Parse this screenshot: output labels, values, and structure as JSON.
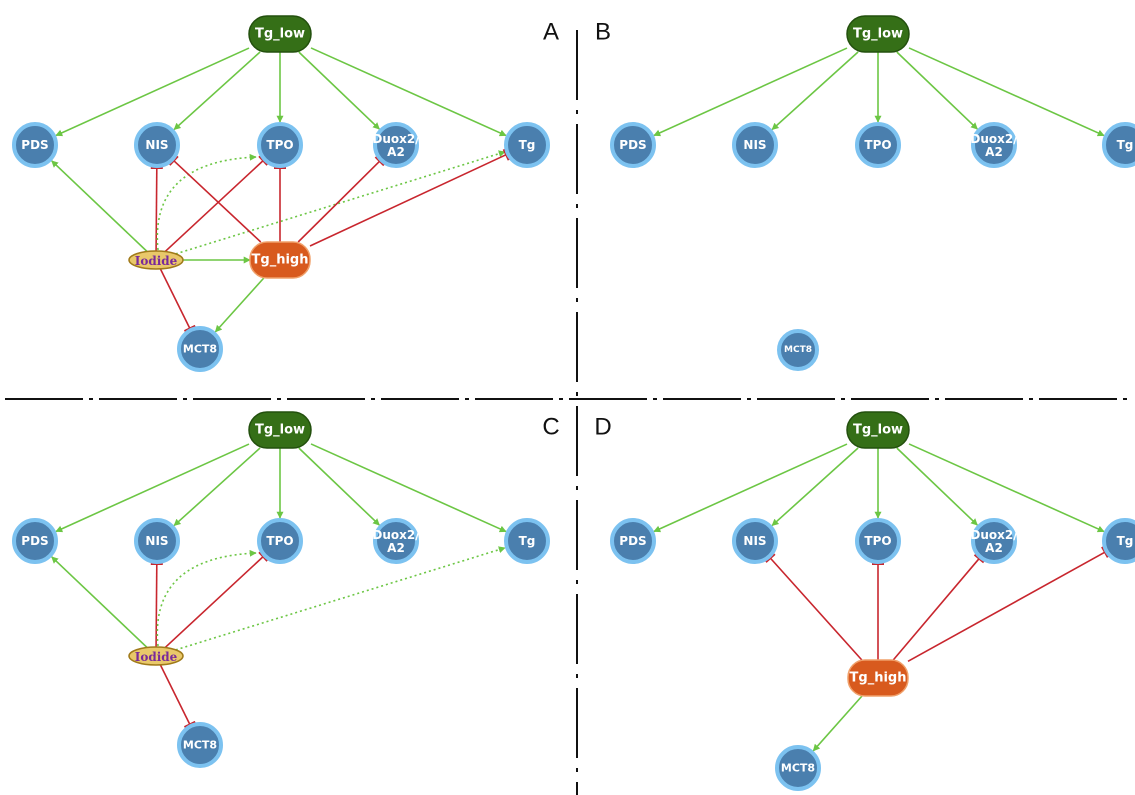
{
  "colors": {
    "activation": "#6cc644",
    "inhibition": "#c8262e",
    "gene_fill": "#4a7fae",
    "gene_ring": "#7cc2f0",
    "tg_low_fill": "#356f17",
    "tg_high_fill": "#d85a1e",
    "iodide_fill": "#e9c86a",
    "iodide_text": "#7a2a9a",
    "divider": "#111111"
  },
  "labels": {
    "tg_low": "Tg_low",
    "tg_high": "Tg_high",
    "iodide": "Iodide",
    "pds": "PDS",
    "nis": "NIS",
    "tpo": "TPO",
    "duox_line1": "Duox2/",
    "duox_line2": "A2",
    "tg": "Tg",
    "mct8": "MCT8"
  },
  "panels": [
    {
      "id": "A",
      "letter": "A",
      "nodes": [
        "tg_low",
        "pds",
        "nis",
        "tpo",
        "duox",
        "tg",
        "iodide",
        "tg_high",
        "mct8"
      ],
      "edges": [
        {
          "from": "tg_low",
          "to": "pds",
          "type": "activation"
        },
        {
          "from": "tg_low",
          "to": "nis",
          "type": "activation"
        },
        {
          "from": "tg_low",
          "to": "tpo",
          "type": "activation"
        },
        {
          "from": "tg_low",
          "to": "duox",
          "type": "activation"
        },
        {
          "from": "tg_low",
          "to": "tg",
          "type": "activation"
        },
        {
          "from": "iodide",
          "to": "pds",
          "type": "activation"
        },
        {
          "from": "iodide",
          "to": "nis",
          "type": "inhibition"
        },
        {
          "from": "iodide",
          "to": "tpo",
          "type": "inhibition"
        },
        {
          "from": "iodide",
          "to": "tpo",
          "type": "activation-dotted-curve"
        },
        {
          "from": "iodide",
          "to": "tg",
          "type": "activation-dotted"
        },
        {
          "from": "iodide",
          "to": "tg_high",
          "type": "activation"
        },
        {
          "from": "iodide",
          "to": "mct8",
          "type": "inhibition"
        },
        {
          "from": "tg_high",
          "to": "nis",
          "type": "inhibition"
        },
        {
          "from": "tg_high",
          "to": "tpo",
          "type": "inhibition"
        },
        {
          "from": "tg_high",
          "to": "duox",
          "type": "inhibition"
        },
        {
          "from": "tg_high",
          "to": "tg",
          "type": "inhibition"
        },
        {
          "from": "tg_high",
          "to": "mct8",
          "type": "activation"
        }
      ]
    },
    {
      "id": "B",
      "letter": "B",
      "nodes": [
        "tg_low",
        "pds",
        "nis",
        "tpo",
        "duox",
        "tg",
        "mct8"
      ],
      "edges": [
        {
          "from": "tg_low",
          "to": "pds",
          "type": "activation"
        },
        {
          "from": "tg_low",
          "to": "nis",
          "type": "activation"
        },
        {
          "from": "tg_low",
          "to": "tpo",
          "type": "activation"
        },
        {
          "from": "tg_low",
          "to": "duox",
          "type": "activation"
        },
        {
          "from": "tg_low",
          "to": "tg",
          "type": "activation"
        }
      ]
    },
    {
      "id": "C",
      "letter": "C",
      "nodes": [
        "tg_low",
        "pds",
        "nis",
        "tpo",
        "duox",
        "tg",
        "iodide",
        "mct8"
      ],
      "edges": [
        {
          "from": "tg_low",
          "to": "pds",
          "type": "activation"
        },
        {
          "from": "tg_low",
          "to": "nis",
          "type": "activation"
        },
        {
          "from": "tg_low",
          "to": "tpo",
          "type": "activation"
        },
        {
          "from": "tg_low",
          "to": "duox",
          "type": "activation"
        },
        {
          "from": "tg_low",
          "to": "tg",
          "type": "activation"
        },
        {
          "from": "iodide",
          "to": "pds",
          "type": "activation"
        },
        {
          "from": "iodide",
          "to": "nis",
          "type": "inhibition"
        },
        {
          "from": "iodide",
          "to": "tpo",
          "type": "inhibition"
        },
        {
          "from": "iodide",
          "to": "tpo",
          "type": "activation-dotted-curve"
        },
        {
          "from": "iodide",
          "to": "tg",
          "type": "activation-dotted"
        },
        {
          "from": "iodide",
          "to": "mct8",
          "type": "inhibition"
        }
      ]
    },
    {
      "id": "D",
      "letter": "D",
      "nodes": [
        "tg_low",
        "pds",
        "nis",
        "tpo",
        "duox",
        "tg",
        "tg_high",
        "mct8"
      ],
      "edges": [
        {
          "from": "tg_low",
          "to": "pds",
          "type": "activation"
        },
        {
          "from": "tg_low",
          "to": "nis",
          "type": "activation"
        },
        {
          "from": "tg_low",
          "to": "tpo",
          "type": "activation"
        },
        {
          "from": "tg_low",
          "to": "duox",
          "type": "activation"
        },
        {
          "from": "tg_low",
          "to": "tg",
          "type": "activation"
        },
        {
          "from": "tg_high",
          "to": "nis",
          "type": "inhibition"
        },
        {
          "from": "tg_high",
          "to": "tpo",
          "type": "inhibition"
        },
        {
          "from": "tg_high",
          "to": "duox",
          "type": "inhibition"
        },
        {
          "from": "tg_high",
          "to": "tg",
          "type": "inhibition"
        },
        {
          "from": "tg_high",
          "to": "mct8",
          "type": "activation"
        }
      ]
    }
  ]
}
